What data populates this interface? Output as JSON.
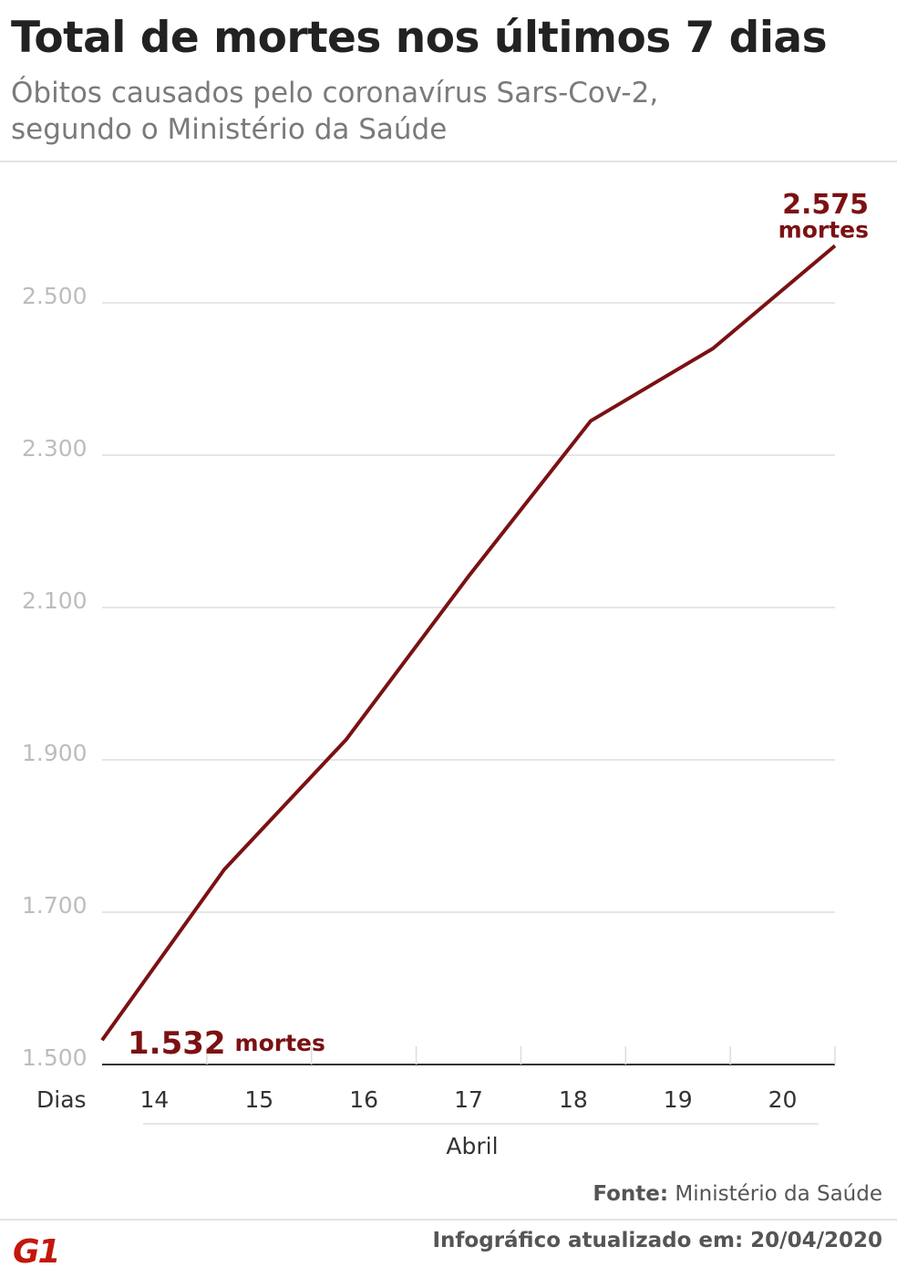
{
  "chart_data": {
    "type": "line",
    "title": "Total de mortes nos últimos 7 dias",
    "subtitle": "Óbitos causados pelo coronavírus Sars-Cov-2, segundo o Ministério da Saúde",
    "x_label": "Dias",
    "x_group_label": "Abril",
    "categories": [
      "14",
      "15",
      "16",
      "17",
      "18",
      "19",
      "20"
    ],
    "series": [
      {
        "name": "Mortes",
        "color": "#7b1113",
        "values": [
          1532,
          1756,
          1927,
          2141,
          2345,
          2440,
          2575
        ],
        "value_labels": [
          "1.532",
          null,
          null,
          null,
          null,
          null,
          "2.575"
        ]
      }
    ],
    "value_label_unit": "mortes",
    "ylim": [
      1500,
      2600
    ],
    "yticks": [
      {
        "value": 1500,
        "label": "1.500"
      },
      {
        "value": 1700,
        "label": "1.700"
      },
      {
        "value": 1900,
        "label": "1.900"
      },
      {
        "value": 2100,
        "label": "2.100"
      },
      {
        "value": 2300,
        "label": "2.300"
      },
      {
        "value": 2500,
        "label": "2.500"
      }
    ],
    "grid": true,
    "source_label": "Fonte:",
    "source": "Ministério da Saúde",
    "updated": "Infográfico atualizado em: 20/04/2020",
    "logo": "G1"
  }
}
